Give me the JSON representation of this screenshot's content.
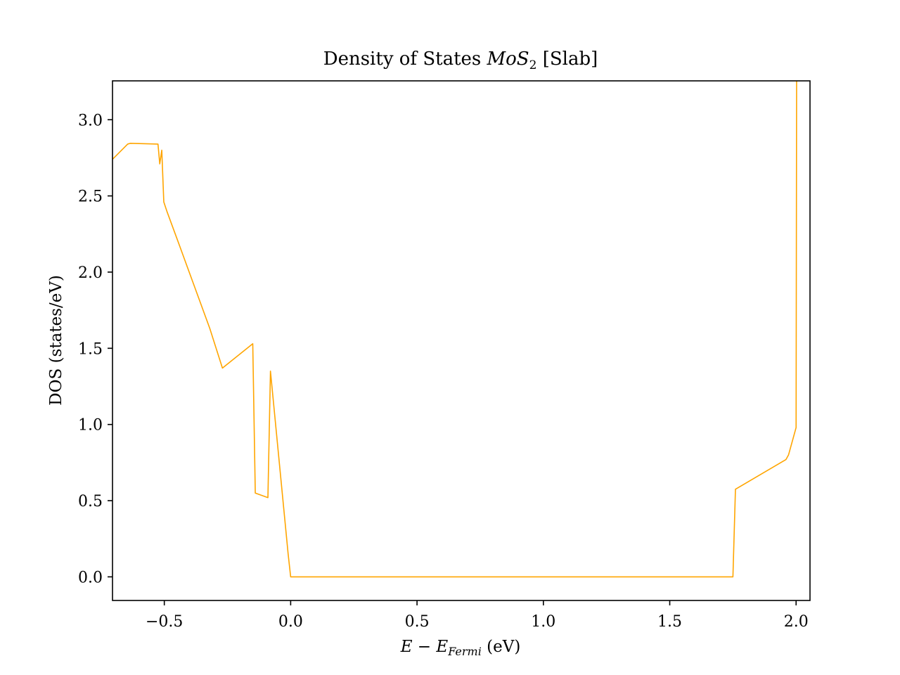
{
  "chart_data": {
    "type": "line",
    "title": {
      "prefix": "Density of States ",
      "math_main": "MoS",
      "math_sub": "2",
      "suffix": " [Slab]"
    },
    "xlabel": {
      "math_a": "E",
      "minus": " − ",
      "math_b": "E",
      "math_sub": "Fermi",
      "suffix": " (eV)"
    },
    "ylabel": "DOS (states/eV)",
    "xlim": [
      -0.705,
      2.055
    ],
    "ylim": [
      -0.155,
      3.255
    ],
    "xticks": [
      {
        "value": -0.5,
        "label": "−0.5"
      },
      {
        "value": 0.0,
        "label": "0.0"
      },
      {
        "value": 0.5,
        "label": "0.5"
      },
      {
        "value": 1.0,
        "label": "1.0"
      },
      {
        "value": 1.5,
        "label": "1.5"
      },
      {
        "value": 2.0,
        "label": "2.0"
      }
    ],
    "yticks": [
      {
        "value": 0.0,
        "label": "0.0"
      },
      {
        "value": 0.5,
        "label": "0.5"
      },
      {
        "value": 1.0,
        "label": "1.0"
      },
      {
        "value": 1.5,
        "label": "1.5"
      },
      {
        "value": 2.0,
        "label": "2.0"
      },
      {
        "value": 2.5,
        "label": "2.5"
      },
      {
        "value": 3.0,
        "label": "3.0"
      }
    ],
    "grid": false,
    "series": [
      {
        "color": "#ffa500",
        "x": [
          -0.705,
          -0.645,
          -0.635,
          -0.525,
          -0.518,
          -0.51,
          -0.502,
          -0.49,
          -0.45,
          -0.32,
          -0.27,
          -0.15,
          -0.14,
          -0.09,
          -0.08,
          -0.01,
          0.0,
          1.75,
          1.76,
          1.96,
          1.97,
          2.0,
          2.002
        ],
        "y": [
          2.74,
          2.84,
          2.845,
          2.84,
          2.71,
          2.8,
          2.46,
          2.4,
          2.22,
          1.63,
          1.37,
          1.53,
          0.55,
          0.52,
          1.35,
          0.15,
          0.0,
          0.0,
          0.575,
          0.77,
          0.8,
          0.98,
          3.255
        ]
      }
    ]
  }
}
